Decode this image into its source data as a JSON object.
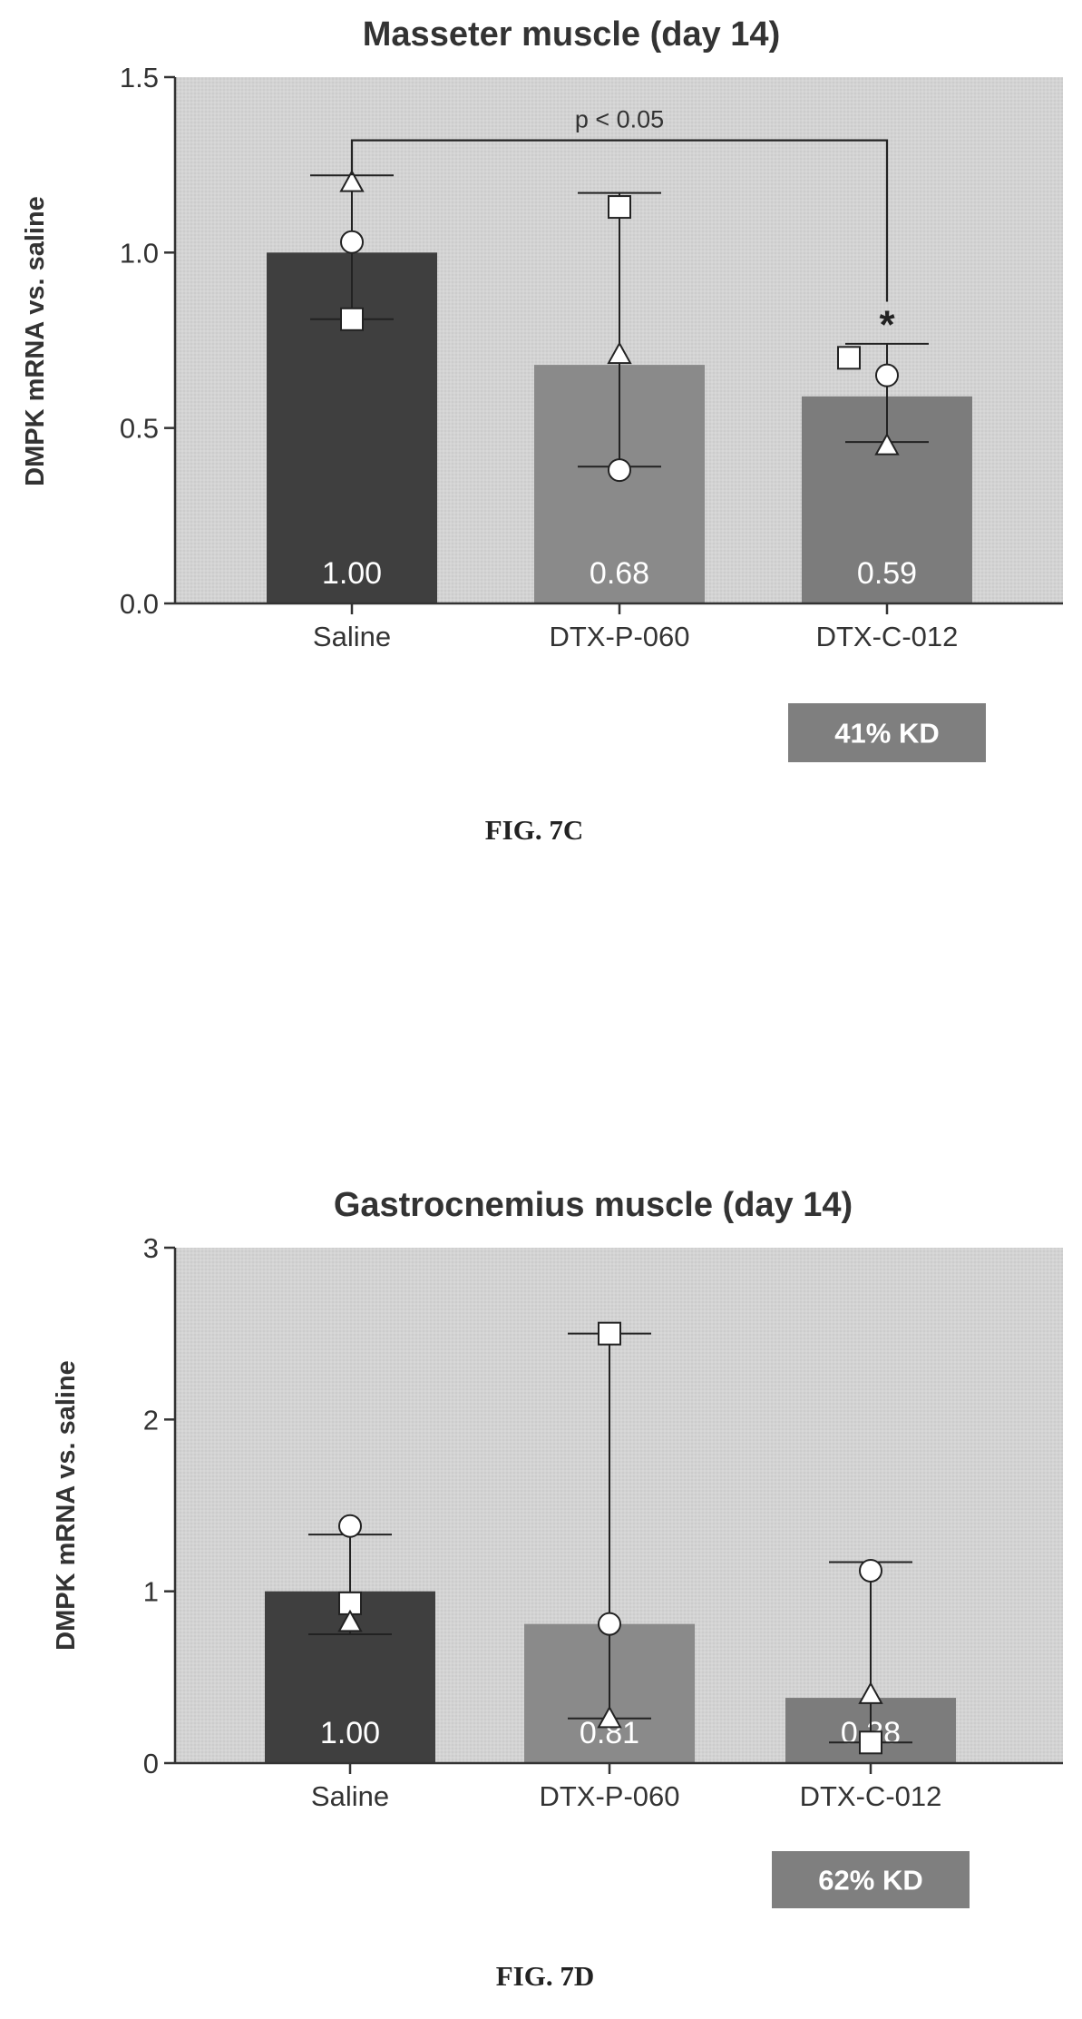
{
  "colors": {
    "plot_bg": "#d3d3d3",
    "saline_bar": "#3f3f3f",
    "p060_bar": "#8a8a8a",
    "c012_bar": "#7c7c7c",
    "kd_box": "#7f7f7f",
    "axis": "#333333",
    "marker_fill": "#ffffff"
  },
  "figures": [
    {
      "label": "FIG. 7C"
    },
    {
      "label": "FIG. 7D"
    }
  ],
  "chart_data": [
    {
      "type": "bar",
      "title": "Masseter muscle (day 14)",
      "ylabel": "DMPK mRNA vs. saline",
      "xlabel": "",
      "ylim": [
        0,
        1.5
      ],
      "yticks": [
        0.0,
        0.5,
        1.0,
        1.5
      ],
      "ytick_labels": [
        "0.0",
        "0.5",
        "1.0",
        "1.5"
      ],
      "grid": false,
      "categories": [
        "Saline",
        "DTX-P-060",
        "DTX-C-012"
      ],
      "values": [
        1.0,
        0.68,
        0.59
      ],
      "value_labels": [
        "1.00",
        "0.68",
        "0.59"
      ],
      "error_bars": [
        [
          0.81,
          1.22
        ],
        [
          0.39,
          1.17
        ],
        [
          0.46,
          0.74
        ]
      ],
      "points": [
        {
          "square": 0.81,
          "circle": 1.03,
          "triangle": 1.2
        },
        {
          "square": 1.13,
          "circle": 0.38,
          "triangle": 0.71
        },
        {
          "square": 0.7,
          "circle": 0.65,
          "triangle": 0.45
        }
      ],
      "significance": {
        "from": 0,
        "to": 2,
        "y": 1.32,
        "text": "p < 0.05",
        "marker": "*"
      },
      "knockdown": {
        "category": 2,
        "text": "41% KD"
      }
    },
    {
      "type": "bar",
      "title": "Gastrocnemius muscle (day 14)",
      "ylabel": "DMPK mRNA vs. saline",
      "xlabel": "",
      "ylim": [
        0,
        3
      ],
      "yticks": [
        0,
        1,
        2,
        3
      ],
      "ytick_labels": [
        "0",
        "1",
        "2",
        "3"
      ],
      "grid": false,
      "categories": [
        "Saline",
        "DTX-P-060",
        "DTX-C-012"
      ],
      "values": [
        1.0,
        0.81,
        0.38
      ],
      "value_labels": [
        "1.00",
        "0.81",
        "0.38"
      ],
      "error_bars": [
        [
          0.75,
          1.33
        ],
        [
          0.26,
          2.5
        ],
        [
          0.12,
          1.17
        ]
      ],
      "points": [
        {
          "square": 0.93,
          "circle": 1.38,
          "triangle": 0.82
        },
        {
          "square": 2.5,
          "circle": 0.81,
          "triangle": 0.26
        },
        {
          "square": 0.12,
          "circle": 1.12,
          "triangle": 0.4
        }
      ],
      "knockdown": {
        "category": 2,
        "text": "62% KD"
      }
    }
  ]
}
